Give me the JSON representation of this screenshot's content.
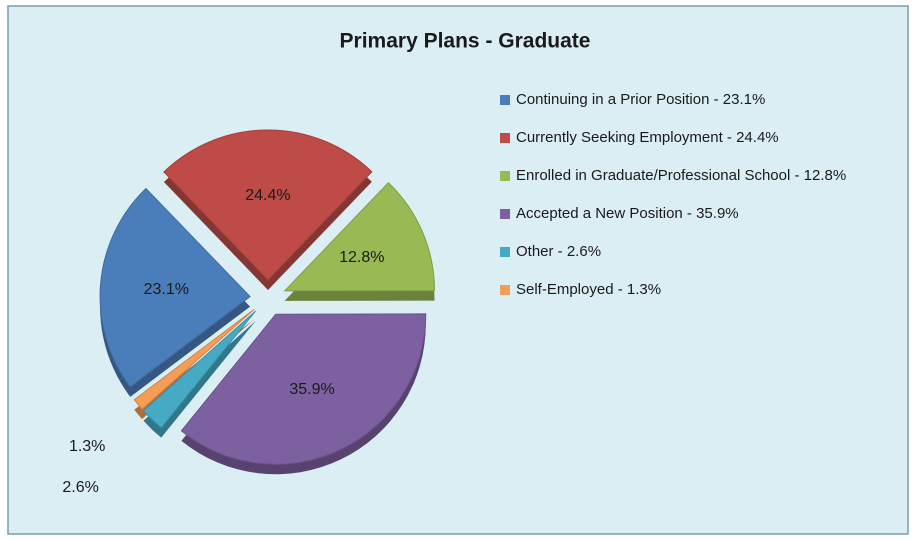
{
  "chart_data": {
    "type": "pie",
    "title": "Primary Plans - Graduate",
    "categories": [
      "Continuing in a Prior Position - 23.1%",
      "Currently Seeking Employment - 24.4%",
      "Enrolled in Graduate/Professional School - 12.8%",
      "Accepted a New Position - 35.9%",
      "Other - 2.6%",
      "Self-Employed - 1.3%"
    ],
    "values": [
      23.1,
      24.4,
      12.8,
      35.9,
      2.6,
      1.3
    ],
    "value_labels": [
      "23.1%",
      "24.4%",
      "12.8%",
      "35.9%",
      "2.6%",
      "1.3%"
    ],
    "colors": [
      "#4a7ebb",
      "#be4b48",
      "#98b954",
      "#7d60a0",
      "#46aac5",
      "#f59d56"
    ],
    "legend": "right"
  }
}
